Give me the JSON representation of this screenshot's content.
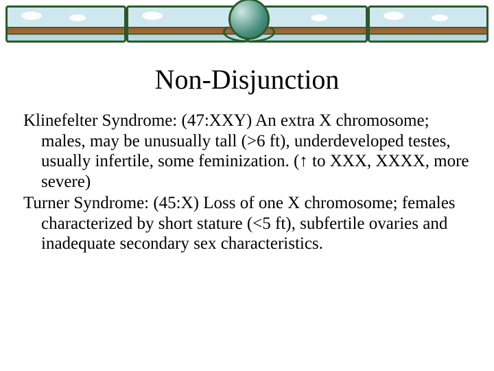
{
  "banner": {
    "segments": 4,
    "border_color": "#2a5a2a",
    "sky_color": "#cfe8f0",
    "ground_color": "#9a5a2a",
    "globe_color": "#4a9080"
  },
  "title": {
    "text": "Non-Disjunction",
    "fontsize": 40,
    "color": "#000000",
    "align": "center"
  },
  "body": {
    "fontsize": 25,
    "color": "#000000",
    "paragraphs": [
      {
        "lead": "Klinefelter Syndrome:",
        "rest": " (47:XXY) An extra X chromosome; males, may be unusually tall (>6 ft), underdeveloped testes, usually infertile, some feminization. (",
        "arrow": "↑",
        "rest2": " to XXX, XXXX, more severe)"
      },
      {
        "lead": "Turner Syndrome:",
        "rest": " (45:X) Loss of one X chromosome; females characterized by short stature (<5 ft), subfertile ovaries and inadequate secondary sex characteristics.",
        "arrow": "",
        "rest2": ""
      }
    ]
  }
}
